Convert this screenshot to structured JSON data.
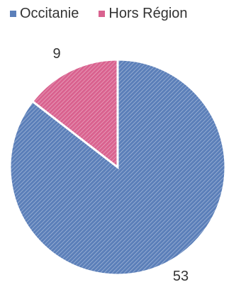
{
  "chart_data": {
    "type": "pie",
    "categories": [
      "Occitanie",
      "Hors Région"
    ],
    "values": [
      53,
      9
    ],
    "colors": [
      "#5b7fb9",
      "#d9628f"
    ],
    "legend": "top",
    "data_labels": [
      "53",
      "9"
    ],
    "start_angle": "12 o'clock",
    "direction": "clockwise",
    "fill_pattern": "diagonal-hatch"
  }
}
